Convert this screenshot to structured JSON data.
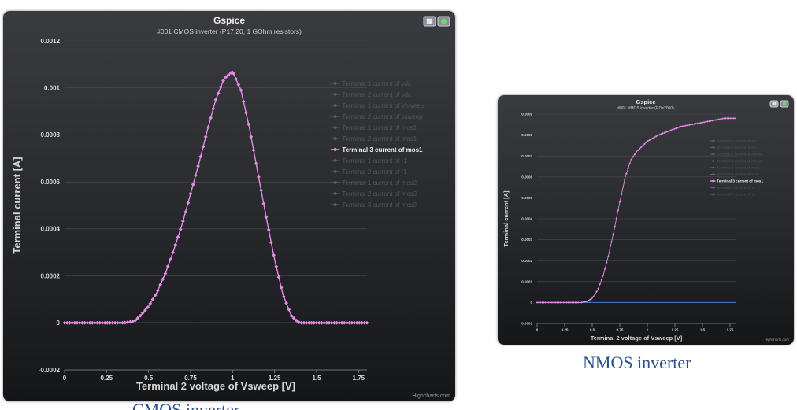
{
  "captions": {
    "cmos": "CMOS inverter",
    "nmos": "NMOS inverter"
  },
  "chart_data": [
    {
      "type": "line",
      "title": "Gspice",
      "subtitle": "#001 CMOS inverter (P17.20, 1 GOhm resistors)",
      "xlabel": "Terminal 2 voltage of Vsweep [V]",
      "ylabel": "Terminal current [A]",
      "credits": "Highcharts.com",
      "xlim": [
        0,
        1.8
      ],
      "ylim": [
        -0.0002,
        0.0012
      ],
      "xticks": [
        "0",
        "0.25",
        "0.5",
        "0.75",
        "1",
        "1.25",
        "1.5",
        "1.75"
      ],
      "yticks": [
        "-0.0002",
        "0",
        "0.0002",
        "0.0004",
        "0.0006",
        "0.0008",
        "0.001",
        "0.0012"
      ],
      "grid": true,
      "legend_placement": "right",
      "colors": {
        "highlight": "#e58be6",
        "baseline": "#4a78c8"
      },
      "legend": [
        "Terminal 1 current of vdc",
        "Terminal 2 current of vdc",
        "Terminal 1 current of Vsweep",
        "Terminal 2 current of vsweep",
        "Terminal 1 current of mos1",
        "Terminal 2 current of mos1",
        "Terminal 3 current of mos1",
        "Terminal 1 current of r1",
        "Terminal 2 current of r1",
        "Terminal 1 current of mos2",
        "Terminal 2 current of mos2",
        "Terminal 3 current of mos2"
      ],
      "highlight_legend_index": 6,
      "series": [
        {
          "name": "Terminal 3 current of mos1",
          "x": [
            0,
            0.1,
            0.2,
            0.3,
            0.35,
            0.4,
            0.42,
            0.45,
            0.5,
            0.55,
            0.6,
            0.65,
            0.7,
            0.75,
            0.8,
            0.85,
            0.9,
            0.95,
            1.0,
            1.05,
            1.1,
            1.15,
            1.2,
            1.25,
            1.3,
            1.35,
            1.38,
            1.4,
            1.5,
            1.6,
            1.7,
            1.8
          ],
          "y": [
            0,
            0,
            0,
            0,
            0,
            5e-06,
            1e-05,
            3e-05,
            7e-05,
            0.00013,
            0.00021,
            0.00031,
            0.00042,
            0.00055,
            0.00068,
            0.00082,
            0.00095,
            0.00104,
            0.00107,
            0.00099,
            0.00083,
            0.00064,
            0.00045,
            0.00027,
            0.00012,
            3e-05,
            1e-05,
            0,
            0,
            0,
            0,
            0
          ]
        },
        {
          "name": "Terminal 1 current of vdc",
          "x": [
            0,
            1.8
          ],
          "y": [
            0,
            0
          ]
        }
      ]
    },
    {
      "type": "line",
      "title": "Gspice",
      "subtitle": "#001 NMOS inverter (RD=2000)",
      "xlabel": "Terminal 2 voltage of Vsweep [V]",
      "ylabel": "Terminal current [A]",
      "credits": "Highcharts.com",
      "xlim": [
        0,
        1.8
      ],
      "ylim": [
        -0.0001,
        0.0009
      ],
      "xticks": [
        "0",
        "0.25",
        "0.5",
        "0.75",
        "1",
        "1.25",
        "1.5",
        "1.75"
      ],
      "yticks": [
        "-0.0001",
        "0",
        "0.0001",
        "0.0002",
        "0.0003",
        "0.0004",
        "0.0005",
        "0.0006",
        "0.0007",
        "0.0008",
        "0.0009"
      ],
      "grid": true,
      "legend_placement": "right",
      "colors": {
        "highlight": "#e58be6",
        "baseline": "#4a78c8"
      },
      "legend": [
        "Terminal 1 current of vdc",
        "Terminal 2 current of vdc",
        "Terminal 1 current of vsweep",
        "Terminal 2 current of vsweep",
        "Terminal 1 current of mos1",
        "Terminal 2 current of mos1",
        "Terminal 3 current of mos1",
        "Terminal 1 current of r1",
        "Terminal 2 current of r1"
      ],
      "highlight_legend_index": 6,
      "series": [
        {
          "name": "Terminal 3 current of mos1",
          "x": [
            0,
            0.2,
            0.3,
            0.4,
            0.45,
            0.5,
            0.55,
            0.6,
            0.65,
            0.7,
            0.75,
            0.8,
            0.85,
            0.9,
            1.0,
            1.1,
            1.2,
            1.3,
            1.4,
            1.5,
            1.6,
            1.7,
            1.8
          ],
          "y": [
            0,
            0,
            0,
            0,
            5e-06,
            2e-05,
            6e-05,
            0.00013,
            0.00023,
            0.00035,
            0.00048,
            0.0006,
            0.00068,
            0.00072,
            0.00077,
            0.0008,
            0.00082,
            0.00084,
            0.00085,
            0.00086,
            0.00087,
            0.00088,
            0.00088
          ]
        },
        {
          "name": "Terminal 1 current of vdc",
          "x": [
            0,
            1.8
          ],
          "y": [
            0,
            0
          ]
        }
      ]
    }
  ]
}
